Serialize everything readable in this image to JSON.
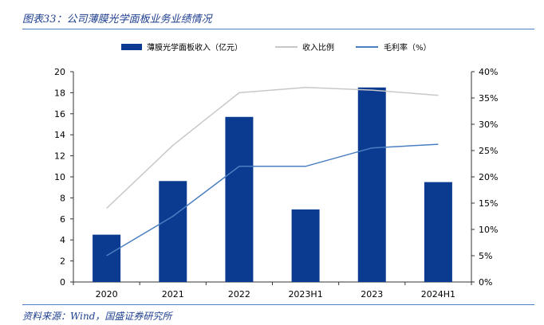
{
  "header": {
    "title": "图表33：公司薄膜光学面板业务业绩情况"
  },
  "footer": {
    "source": "资料来源：Wind，国盛证券研究所"
  },
  "colors": {
    "bar": "#0b3b91",
    "share_line": "#c8c8c8",
    "margin_line": "#4a7fc1",
    "rule": "#4f7fc4"
  },
  "chart_data": {
    "type": "bar",
    "categories": [
      "2020",
      "2021",
      "2022",
      "2023H1",
      "2023",
      "2024H1"
    ],
    "series": [
      {
        "name": "薄膜光学面板收入（亿元）",
        "type": "bar",
        "axis": "left",
        "values": [
          4.5,
          9.6,
          15.7,
          6.9,
          18.5,
          9.5
        ]
      },
      {
        "name": "收入比例",
        "type": "line",
        "axis": "right",
        "values": [
          14.0,
          26.0,
          36.0,
          37.0,
          36.5,
          35.5
        ]
      },
      {
        "name": "毛利率（%）",
        "type": "line",
        "axis": "right",
        "values": [
          5.0,
          12.5,
          22.0,
          22.0,
          25.5,
          26.2
        ]
      }
    ],
    "y_left": {
      "min": 0,
      "max": 20,
      "ticks": [
        "0",
        "2",
        "4",
        "6",
        "8",
        "10",
        "12",
        "14",
        "16",
        "18",
        "20"
      ]
    },
    "y_right": {
      "min": 0,
      "max": 40,
      "ticks": [
        "0%",
        "5%",
        "10%",
        "15%",
        "20%",
        "25%",
        "30%",
        "35%",
        "40%"
      ]
    },
    "grid": false,
    "legend_position": "top"
  }
}
